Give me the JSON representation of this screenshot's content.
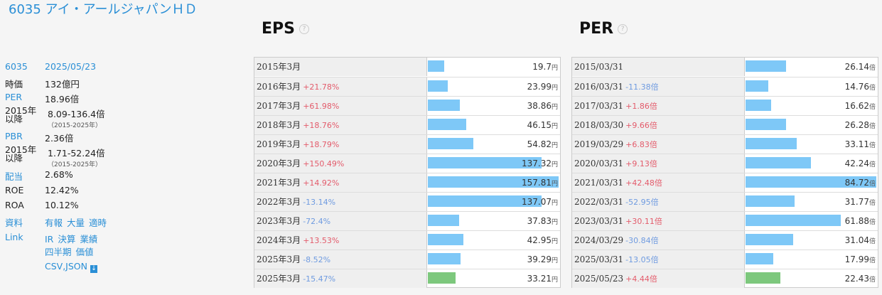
{
  "company": {
    "title": "6035 アイ・アールジャパンＨＤ",
    "code": "6035",
    "date": "2025/05/23",
    "metrics": [
      {
        "label": "時価",
        "value": "132億円"
      },
      {
        "label": "PER",
        "value": "18.96倍"
      },
      {
        "label": "2015年以降",
        "value": "8.09-136.4倍",
        "sub": "（2015-2025年）"
      },
      {
        "label": "PBR",
        "value": "2.36倍"
      },
      {
        "label": "2015年以降",
        "value": "1.71-52.24倍",
        "sub": "（2015-2025年）"
      },
      {
        "label": "配当",
        "value": "2.68%"
      },
      {
        "label": "ROE",
        "value": "12.42%"
      },
      {
        "label": "ROA",
        "value": "10.12%"
      }
    ],
    "materials_label": "資料",
    "materials": [
      "有報",
      "大量",
      "適時"
    ],
    "link_label": "Link",
    "links1": [
      "IR",
      "決算",
      "業績"
    ],
    "links2": [
      "四半期",
      "価値"
    ],
    "download": "CSV,JSON",
    "download_icon": "download-icon"
  },
  "chart_data": [
    {
      "type": "bar",
      "title": "EPS",
      "unit": "円",
      "categories": [
        "2015年3月",
        "2016年3月",
        "2017年3月",
        "2018年3月",
        "2019年3月",
        "2020年3月",
        "2021年3月",
        "2022年3月",
        "2023年3月",
        "2024年3月",
        "2025年3月",
        "2025年3月"
      ],
      "changes": [
        "",
        "+21.78%",
        "+61.98%",
        "+18.76%",
        "+18.79%",
        "+150.49%",
        "+14.92%",
        "-13.14%",
        "-72.4%",
        "+13.53%",
        "-8.52%",
        "-15.47%"
      ],
      "values": [
        19.7,
        23.99,
        38.86,
        46.15,
        54.82,
        137.32,
        157.81,
        137.07,
        37.83,
        42.95,
        39.29,
        33.21
      ],
      "labels": [
        "19.7",
        "23.99",
        "38.86",
        "46.15",
        "54.82",
        "137.32",
        "157.81",
        "137.07",
        "37.83",
        "42.95",
        "39.29",
        "33.21"
      ],
      "estimate_last": true
    },
    {
      "type": "bar",
      "title": "PER",
      "unit": "倍",
      "categories": [
        "2015/03/31",
        "2016/03/31",
        "2017/03/31",
        "2018/03/30",
        "2019/03/29",
        "2020/03/31",
        "2021/03/31",
        "2022/03/31",
        "2023/03/31",
        "2024/03/29",
        "2025/03/31",
        "2025/05/23"
      ],
      "changes": [
        "",
        "-11.38倍",
        "+1.86倍",
        "+9.66倍",
        "+6.83倍",
        "+9.13倍",
        "+42.48倍",
        "-52.95倍",
        "+30.11倍",
        "-30.84倍",
        "-13.05倍",
        "+4.44倍"
      ],
      "values": [
        26.14,
        14.76,
        16.62,
        26.28,
        33.11,
        42.24,
        84.72,
        31.77,
        61.88,
        31.04,
        17.99,
        22.43
      ],
      "labels": [
        "26.14",
        "14.76",
        "16.62",
        "26.28",
        "33.11",
        "42.24",
        "84.72",
        "31.77",
        "61.88",
        "31.04",
        "17.99",
        "22.43"
      ],
      "estimate_last": true
    }
  ],
  "colors": {
    "bar": "#7ec8f7",
    "bar_current": "#7dc87d",
    "up": "#e35b6b",
    "down": "#6f9be0",
    "accent": "#2a8fd6"
  },
  "help_icon": "help-icon"
}
